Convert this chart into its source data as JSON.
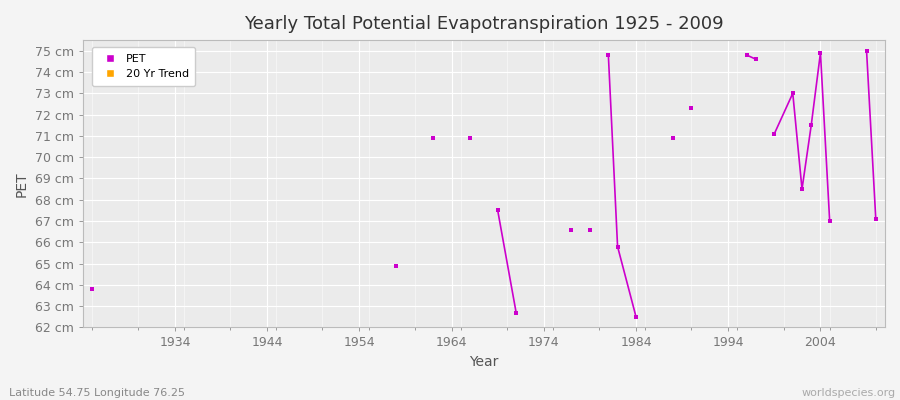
{
  "title": "Yearly Total Potential Evapotranspiration 1925 - 2009",
  "xlabel": "Year",
  "ylabel": "PET",
  "subtitle": "Latitude 54.75 Longitude 76.25",
  "watermark": "worldspecies.org",
  "ylim": [
    62,
    75.5
  ],
  "ytick_labels": [
    "62 cm",
    "63 cm",
    "64 cm",
    "65 cm",
    "66 cm",
    "67 cm",
    "68 cm",
    "69 cm",
    "70 cm",
    "71 cm",
    "72 cm",
    "73 cm",
    "74 cm",
    "75 cm"
  ],
  "ytick_values": [
    62,
    63,
    64,
    65,
    66,
    67,
    68,
    69,
    70,
    71,
    72,
    73,
    74,
    75
  ],
  "xlim": [
    1924,
    2011
  ],
  "xtick_values": [
    1934,
    1944,
    1954,
    1964,
    1974,
    1984,
    1994,
    2004
  ],
  "pet_color": "#cc00cc",
  "trend_color": "#FFA500",
  "bg_color": "#f4f4f4",
  "plot_bg_color": "#ebebeb",
  "grid_color": "#ffffff",
  "legend_labels": [
    "PET",
    "20 Yr Trend"
  ],
  "isolated_points": [
    [
      1925,
      63.8
    ],
    [
      1958,
      64.9
    ],
    [
      1962,
      70.9
    ],
    [
      1966,
      70.9
    ],
    [
      1977,
      66.6
    ],
    [
      1979,
      66.6
    ],
    [
      1988,
      70.9
    ],
    [
      1990,
      72.3
    ]
  ],
  "connected_segments": [
    [
      [
        1969,
        67.5
      ],
      [
        1971,
        62.7
      ]
    ],
    [
      [
        1981,
        74.8
      ],
      [
        1982,
        65.8
      ],
      [
        1984,
        62.5
      ]
    ],
    [
      [
        1996,
        74.8
      ],
      [
        1997,
        74.6
      ]
    ],
    [
      [
        1999,
        71.1
      ],
      [
        2001,
        73.0
      ],
      [
        2002,
        68.5
      ],
      [
        2003,
        71.5
      ],
      [
        2004,
        74.9
      ],
      [
        2005,
        67.0
      ]
    ],
    [
      [
        2009,
        75.0
      ],
      [
        2010,
        67.1
      ]
    ]
  ]
}
